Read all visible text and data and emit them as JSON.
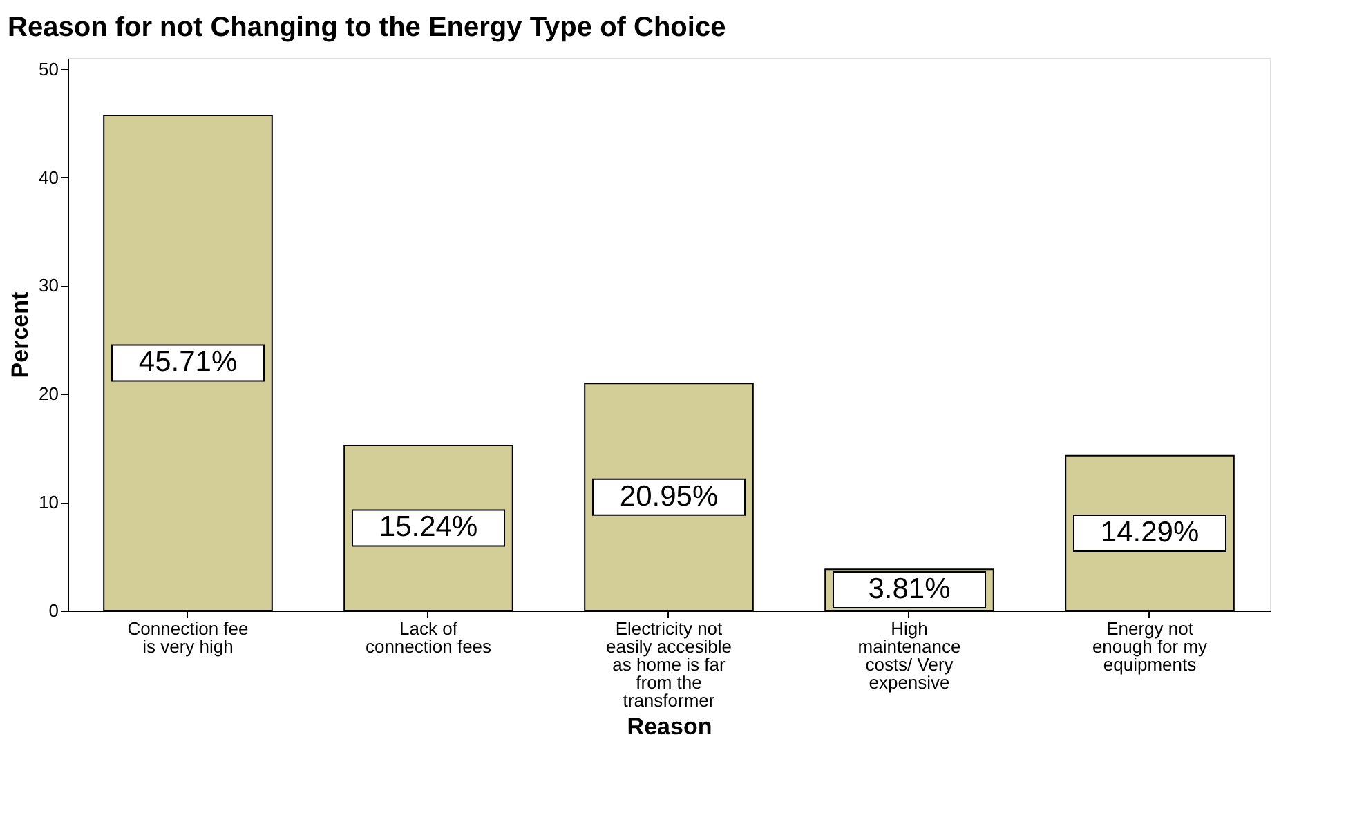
{
  "chart_data": {
    "type": "bar",
    "title": "Reason for not Changing to the Energy Type of Choice",
    "xlabel": "Reason",
    "ylabel": "Percent",
    "categories": [
      "Connection fee\nis very high",
      "Lack of\nconnection fees",
      "Electricity not\neasily accesible\nas home is far\nfrom the\ntransformer",
      "High\nmaintenance\ncosts/ Very\nexpensive",
      "Energy not\nenough for my\nequipments"
    ],
    "values": [
      45.71,
      15.24,
      20.95,
      3.81,
      14.29
    ],
    "value_labels": [
      "45.71%",
      "15.24%",
      "20.95%",
      "3.81%",
      "14.29%"
    ],
    "color": "#d3ce97",
    "ylim": [
      0,
      51
    ],
    "yticks": [
      0,
      10,
      20,
      30,
      40,
      50
    ],
    "grid": false
  }
}
